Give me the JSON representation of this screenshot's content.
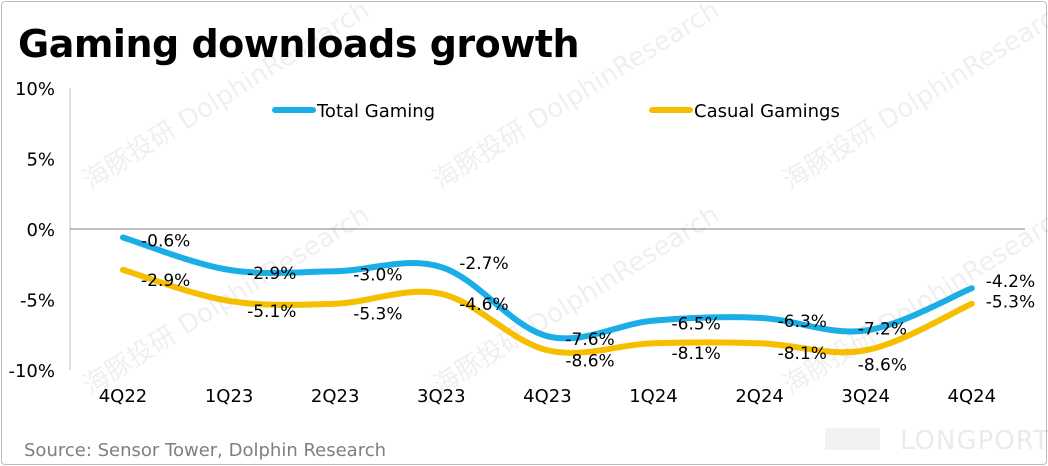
{
  "title": "Gaming downloads growth",
  "source": "Source: Sensor Tower, Dolphin Research",
  "watermark": "海豚投研 DolphinResearch",
  "logo": "LONGPORT",
  "colors": {
    "total": "#1aaee6",
    "casual": "#f5bf00"
  },
  "chart_data": {
    "type": "line",
    "title": "Gaming downloads growth",
    "categories": [
      "4Q22",
      "1Q23",
      "2Q23",
      "3Q23",
      "4Q23",
      "1Q24",
      "2Q24",
      "3Q24",
      "4Q24"
    ],
    "yticks": [
      "10%",
      "5%",
      "0%",
      "-5%",
      "-10%"
    ],
    "ytick_values": [
      10,
      5,
      0,
      -5,
      -10
    ],
    "ylim": [
      -10,
      10
    ],
    "legend_position": "top",
    "series": [
      {
        "name": "Total Gaming",
        "values": [
          -0.6,
          -2.9,
          -3.0,
          -2.7,
          -7.6,
          -6.5,
          -6.3,
          -7.2,
          -4.2
        ],
        "labels": [
          "-0.6%",
          "-2.9%",
          "-3.0%",
          "-2.7%",
          "-7.6%",
          "-6.5%",
          "-6.3%",
          "-7.2%",
          "-4.2%"
        ]
      },
      {
        "name": "Casual Gamings",
        "values": [
          -2.9,
          -5.1,
          -5.3,
          -4.6,
          -8.6,
          -8.1,
          -8.1,
          -8.6,
          -5.3
        ],
        "labels": [
          "-2.9%",
          "-5.1%",
          "-5.3%",
          "-4.6%",
          "-8.6%",
          "-8.1%",
          "-8.1%",
          "-8.6%",
          "-5.3%"
        ]
      }
    ]
  }
}
